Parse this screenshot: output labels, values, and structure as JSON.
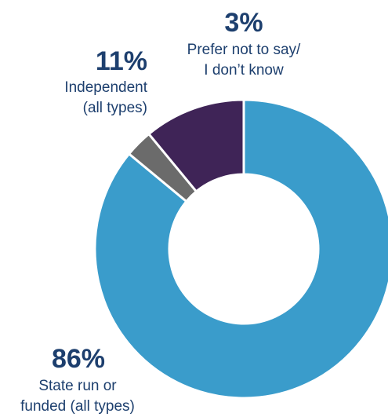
{
  "chart_data": {
    "type": "pie",
    "variant": "donut",
    "slices": [
      {
        "name": "State run or funded (all types)",
        "value": 86,
        "color": "#3a9ccb"
      },
      {
        "name": "Prefer not to say/ I don't know",
        "value": 3,
        "color": "#6b6b6b"
      },
      {
        "name": "Independent (all types)",
        "value": 11,
        "color": "#3f2457"
      }
    ],
    "labels": {
      "state": {
        "pct": "86%",
        "line1": "State run or",
        "line2": "funded (all types)"
      },
      "independent": {
        "pct": "11%",
        "line1": "Independent",
        "line2": "(all types)"
      },
      "prefer": {
        "pct": "3%",
        "line1": "Prefer not to say/",
        "line2": "I don’t know"
      }
    }
  },
  "colors": {
    "label_text": "#1d3f6e",
    "slice_border": "#ffffff"
  }
}
